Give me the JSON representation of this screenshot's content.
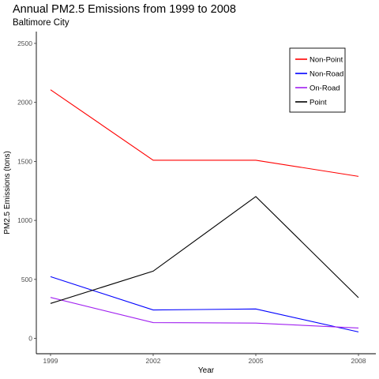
{
  "chart_data": {
    "type": "line",
    "title": "Annual PM2.5 Emissions from 1999 to 2008",
    "subtitle": "Baltimore City",
    "xlabel": "Year",
    "ylabel": "PM2.5 Emissions (tons)",
    "x": [
      1999,
      2002,
      2005,
      2008
    ],
    "xlim": [
      1999,
      2008
    ],
    "ylim": [
      -130,
      2600
    ],
    "yticks": [
      0,
      500,
      1000,
      1500,
      2000,
      2500
    ],
    "xticks": [
      1999,
      2002,
      2005,
      2008
    ],
    "grid": false,
    "legend_position": "top-right",
    "series": [
      {
        "name": "Non-Point",
        "color": "#FF0000",
        "values": [
          2107,
          1510,
          1510,
          1373
        ]
      },
      {
        "name": "Non-Road",
        "color": "#0000FF",
        "values": [
          523,
          241,
          249,
          55
        ]
      },
      {
        "name": "On-Road",
        "color": "#A020F0",
        "values": [
          347,
          134,
          130,
          88
        ]
      },
      {
        "name": "Point",
        "color": "#000000",
        "values": [
          296,
          570,
          1202,
          345
        ]
      }
    ]
  }
}
